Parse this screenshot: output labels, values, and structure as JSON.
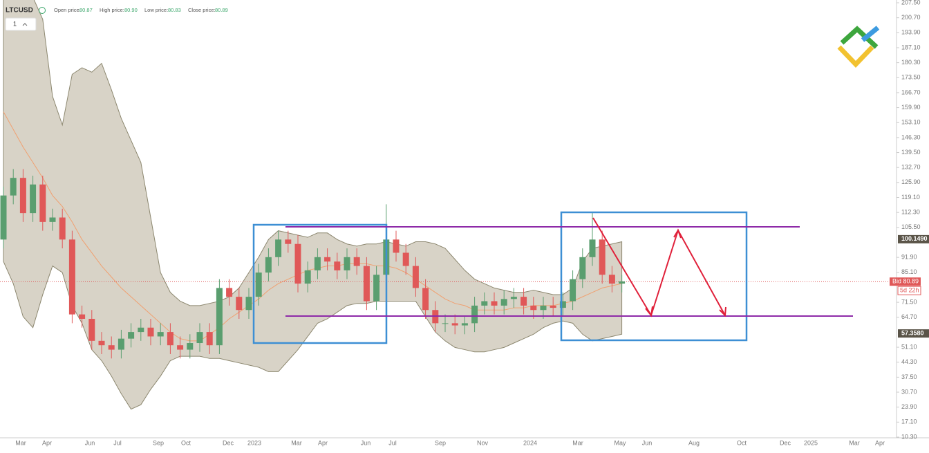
{
  "header": {
    "symbol": "LTCUSD",
    "open_label": "Open price:",
    "open": "80.87",
    "high_label": "High price:",
    "high": "80.90",
    "low_label": "Low price:",
    "low": "80.83",
    "close_label": "Close price:",
    "close": "80.89",
    "interval": "1"
  },
  "chart_data": {
    "type": "candlestick",
    "ylim": [
      10.3,
      207.5
    ],
    "yticks": [
      {
        "value": 207.5,
        "label": "207.50"
      },
      {
        "value": 200.7,
        "label": "200.70"
      },
      {
        "value": 193.9,
        "label": "193.90"
      },
      {
        "value": 187.1,
        "label": "187.10"
      },
      {
        "value": 180.3,
        "label": "180.30"
      },
      {
        "value": 173.5,
        "label": "173.50"
      },
      {
        "value": 166.7,
        "label": "166.70"
      },
      {
        "value": 159.9,
        "label": "159.90"
      },
      {
        "value": 153.1,
        "label": "153.10"
      },
      {
        "value": 146.3,
        "label": "146.30"
      },
      {
        "value": 139.5,
        "label": "139.50"
      },
      {
        "value": 132.7,
        "label": "132.70"
      },
      {
        "value": 125.9,
        "label": "125.90"
      },
      {
        "value": 119.1,
        "label": "119.10"
      },
      {
        "value": 112.3,
        "label": "112.30"
      },
      {
        "value": 105.5,
        "label": "105.50"
      },
      {
        "value": 91.9,
        "label": "91.90"
      },
      {
        "value": 85.1,
        "label": "85.10"
      },
      {
        "value": 71.5,
        "label": "71.50"
      },
      {
        "value": 64.7,
        "label": "64.70"
      },
      {
        "value": 51.1,
        "label": "51.10"
      },
      {
        "value": 44.3,
        "label": "44.30"
      },
      {
        "value": 37.5,
        "label": "37.50"
      },
      {
        "value": 30.7,
        "label": "30.70"
      },
      {
        "value": 23.9,
        "label": "23.90"
      },
      {
        "value": 17.1,
        "label": "17.10"
      },
      {
        "value": 10.3,
        "label": "10.30"
      }
    ],
    "xticks": [
      "Mar",
      "Apr",
      "Jun",
      "Jul",
      "Sep",
      "Oct",
      "Dec",
      "2023",
      "Mar",
      "Apr",
      "Jun",
      "Jul",
      "Sep",
      "Nov",
      "2024",
      "Mar",
      "May",
      "Jun",
      "Aug",
      "Oct",
      "Dec",
      "2025",
      "Mar",
      "Apr"
    ],
    "up_color": "#5a9e6f",
    "down_color": "#e05858",
    "open": [
      100,
      120,
      128,
      112,
      125,
      108,
      110,
      100,
      66,
      64,
      54,
      52,
      50,
      55,
      58,
      60,
      56,
      58,
      52,
      50,
      53,
      58,
      52,
      78,
      74,
      68,
      74,
      85,
      92,
      100,
      98,
      80,
      86,
      92,
      90,
      86,
      92,
      88,
      72,
      84,
      100,
      94,
      88,
      78,
      68,
      62,
      62,
      61,
      62,
      70,
      72,
      70,
      73,
      74,
      70,
      68,
      70,
      69,
      72,
      82,
      92,
      100,
      84,
      80
    ],
    "high": [
      124,
      132,
      132,
      129,
      129,
      114,
      114,
      104,
      70,
      68,
      58,
      56,
      59,
      62,
      64,
      64,
      62,
      62,
      56,
      57,
      62,
      62,
      82,
      82,
      78,
      78,
      89,
      96,
      104,
      104,
      102,
      90,
      96,
      96,
      94,
      96,
      96,
      92,
      88,
      116,
      104,
      98,
      92,
      82,
      72,
      66,
      66,
      65,
      74,
      76,
      76,
      77,
      78,
      78,
      74,
      74,
      74,
      76,
      86,
      96,
      112,
      104,
      88,
      84
    ],
    "low": [
      96,
      116,
      108,
      108,
      104,
      104,
      96,
      62,
      60,
      50,
      48,
      46,
      46,
      51,
      54,
      52,
      52,
      48,
      46,
      46,
      49,
      48,
      48,
      70,
      64,
      64,
      70,
      81,
      88,
      94,
      76,
      76,
      82,
      86,
      82,
      82,
      84,
      68,
      68,
      80,
      90,
      84,
      74,
      64,
      58,
      58,
      57,
      57,
      58,
      66,
      66,
      66,
      69,
      66,
      64,
      64,
      65,
      65,
      68,
      78,
      88,
      80,
      76,
      76
    ],
    "close": [
      120,
      128,
      112,
      125,
      108,
      110,
      100,
      66,
      64,
      54,
      52,
      50,
      55,
      58,
      60,
      56,
      58,
      52,
      50,
      53,
      58,
      52,
      78,
      74,
      68,
      74,
      85,
      92,
      100,
      98,
      80,
      86,
      92,
      90,
      86,
      92,
      88,
      72,
      84,
      100,
      94,
      88,
      78,
      68,
      62,
      62,
      61,
      62,
      70,
      72,
      70,
      73,
      74,
      70,
      68,
      70,
      69,
      72,
      82,
      92,
      100,
      84,
      80,
      81
    ],
    "bands": {
      "fill": "#d8d3c7",
      "stroke": "#8c876f",
      "middle_color": "#f0a070",
      "upper": [
        215,
        215,
        215,
        210,
        200,
        165,
        152,
        175,
        178,
        176,
        180,
        168,
        155,
        145,
        135,
        110,
        85,
        76,
        72,
        70,
        70,
        71,
        72,
        74,
        78,
        85,
        92,
        100,
        104,
        103,
        102,
        101,
        103,
        103,
        100,
        98,
        97,
        98,
        98,
        99,
        98,
        97,
        99,
        99,
        98,
        96,
        91,
        86,
        82,
        80,
        78,
        77,
        76,
        76,
        77,
        76,
        75,
        75,
        78,
        90,
        96,
        97,
        98,
        99
      ],
      "middle": [
        158,
        150,
        142,
        135,
        128,
        120,
        115,
        108,
        100,
        94,
        88,
        83,
        78,
        74,
        70,
        66,
        62,
        58,
        55,
        54,
        54,
        57,
        60,
        64,
        67,
        70,
        73,
        77,
        80,
        82,
        84,
        86,
        87,
        88,
        88,
        89,
        89,
        89,
        88,
        88,
        87,
        85,
        82,
        79,
        76,
        73,
        71,
        70,
        68,
        68,
        68,
        68,
        69,
        69,
        70,
        70,
        70,
        71,
        72,
        74,
        76,
        78,
        79,
        80
      ],
      "lower": [
        90,
        80,
        65,
        60,
        75,
        88,
        85,
        70,
        62,
        50,
        45,
        38,
        30,
        23,
        25,
        32,
        38,
        45,
        47,
        47,
        47,
        46,
        46,
        45,
        44,
        43,
        42,
        40,
        40,
        45,
        50,
        56,
        62,
        64,
        67,
        70,
        71,
        71,
        72,
        72,
        72,
        72,
        72,
        65,
        58,
        54,
        51,
        50,
        49,
        49,
        50,
        51,
        53,
        55,
        57,
        60,
        62,
        63,
        62,
        57,
        54,
        55,
        56,
        57
      ]
    },
    "price_labels": [
      {
        "value": 100.149,
        "label": "100.1490"
      },
      {
        "value": 57.358,
        "label": "57.3580"
      }
    ],
    "bid": {
      "value": 80.89,
      "label": "Bid 80.89"
    },
    "countdown": "5d 22h"
  }
}
